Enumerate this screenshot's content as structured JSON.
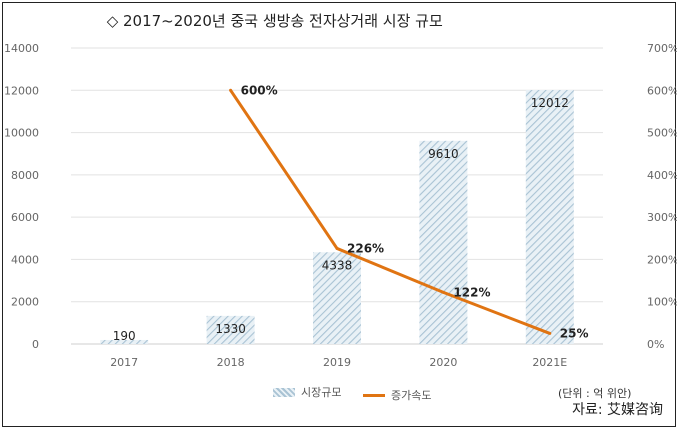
{
  "title_text": "2017~2020년 중국 생방송 전자상거래 시장 규모",
  "title_marker": "◇",
  "unit_note": "(단위 : 억 위안)",
  "source_note": "자료: 艾媒咨询",
  "colors": {
    "bar_stripe": "#a9c3d4",
    "bar_bg": "#e9f1f6",
    "line": "#e07412",
    "grid": "#e2e2e2",
    "axis_text": "#666666",
    "label_text": "#222222"
  },
  "chart_data": {
    "type": "bar",
    "categories": [
      "2017",
      "2018",
      "2019",
      "2020",
      "2021E"
    ],
    "series": [
      {
        "name": "시장규모",
        "type": "bar",
        "axis": "left",
        "values": [
          190,
          1330,
          4338,
          9610,
          12012
        ],
        "labels": [
          "190",
          "1330",
          "4338",
          "9610",
          "12012"
        ]
      },
      {
        "name": "증가속도",
        "type": "line",
        "axis": "right",
        "values": [
          null,
          600,
          226,
          122,
          25
        ],
        "labels": [
          "",
          "600%",
          "226%",
          "122%",
          "25%"
        ]
      }
    ],
    "left_axis": {
      "ylim": [
        0,
        14000
      ],
      "ticks": [
        "0",
        "2000",
        "4000",
        "6000",
        "8000",
        "10000",
        "12000",
        "14000"
      ]
    },
    "right_axis": {
      "ylim": [
        0,
        700
      ],
      "ticks": [
        "0%",
        "100%",
        "200%",
        "300%",
        "400%",
        "500%",
        "600%",
        "700%"
      ]
    },
    "grid": true,
    "legend_position": "bottom"
  }
}
